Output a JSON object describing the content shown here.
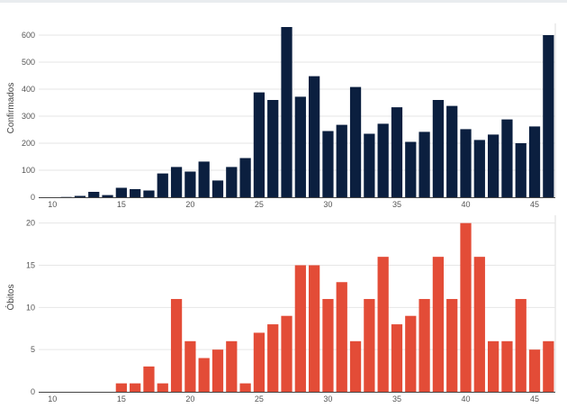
{
  "chart_data": [
    {
      "type": "bar",
      "ylabel": "Confirmados",
      "xlabel": "",
      "color": "#0b1f3f",
      "xlim": [
        9,
        46.5
      ],
      "ylim": [
        0,
        630
      ],
      "xticks": [
        10,
        15,
        20,
        25,
        30,
        35,
        40,
        45
      ],
      "yticks": [
        0,
        100,
        200,
        300,
        400,
        500,
        600
      ],
      "x": [
        10,
        11,
        12,
        13,
        14,
        15,
        16,
        17,
        18,
        19,
        20,
        21,
        22,
        23,
        24,
        25,
        26,
        27,
        28,
        29,
        30,
        31,
        32,
        33,
        34,
        35,
        36,
        37,
        38,
        39,
        40,
        41,
        42,
        43,
        44,
        45,
        46
      ],
      "values": [
        0,
        1,
        5,
        20,
        8,
        35,
        30,
        25,
        88,
        112,
        95,
        132,
        62,
        112,
        145,
        388,
        360,
        630,
        372,
        448,
        245,
        268,
        408,
        235,
        272,
        333,
        205,
        242,
        360,
        338,
        252,
        212,
        232,
        288,
        200,
        262,
        600
      ]
    },
    {
      "type": "bar",
      "ylabel": "Óbitos",
      "xlabel": "",
      "color": "#e34c37",
      "xlim": [
        9,
        46.5
      ],
      "ylim": [
        0,
        20.5
      ],
      "xticks": [
        10,
        15,
        20,
        25,
        30,
        35,
        40,
        45
      ],
      "yticks": [
        0,
        5,
        10,
        15,
        20
      ],
      "x": [
        10,
        11,
        12,
        13,
        14,
        15,
        16,
        17,
        18,
        19,
        20,
        21,
        22,
        23,
        24,
        25,
        26,
        27,
        28,
        29,
        30,
        31,
        32,
        33,
        34,
        35,
        36,
        37,
        38,
        39,
        40,
        41,
        42,
        43,
        44,
        45,
        46
      ],
      "values": [
        0,
        0,
        0,
        0,
        0,
        1,
        1,
        3,
        1,
        11,
        6,
        4,
        5,
        6,
        1,
        7,
        8,
        9,
        15,
        15,
        11,
        13,
        6,
        11,
        16,
        8,
        9,
        11,
        16,
        11,
        20,
        16,
        6,
        6,
        11,
        5,
        6
      ]
    }
  ]
}
